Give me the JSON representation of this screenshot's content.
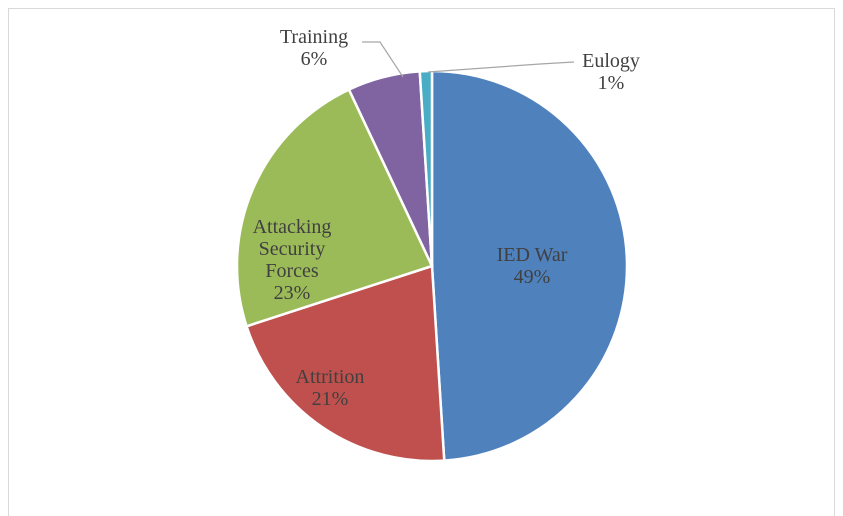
{
  "chart_data": {
    "type": "pie",
    "categories": [
      "IED War",
      "Attrition",
      "Attacking Security Forces",
      "Training",
      "Eulogy"
    ],
    "values": [
      49,
      21,
      23,
      6,
      1
    ],
    "value_labels": [
      "49%",
      "21%",
      "23%",
      "6%",
      "1%"
    ],
    "colors": [
      "#4f81bd",
      "#c0504d",
      "#9bbb59",
      "#8064a2",
      "#4bacc6"
    ]
  }
}
